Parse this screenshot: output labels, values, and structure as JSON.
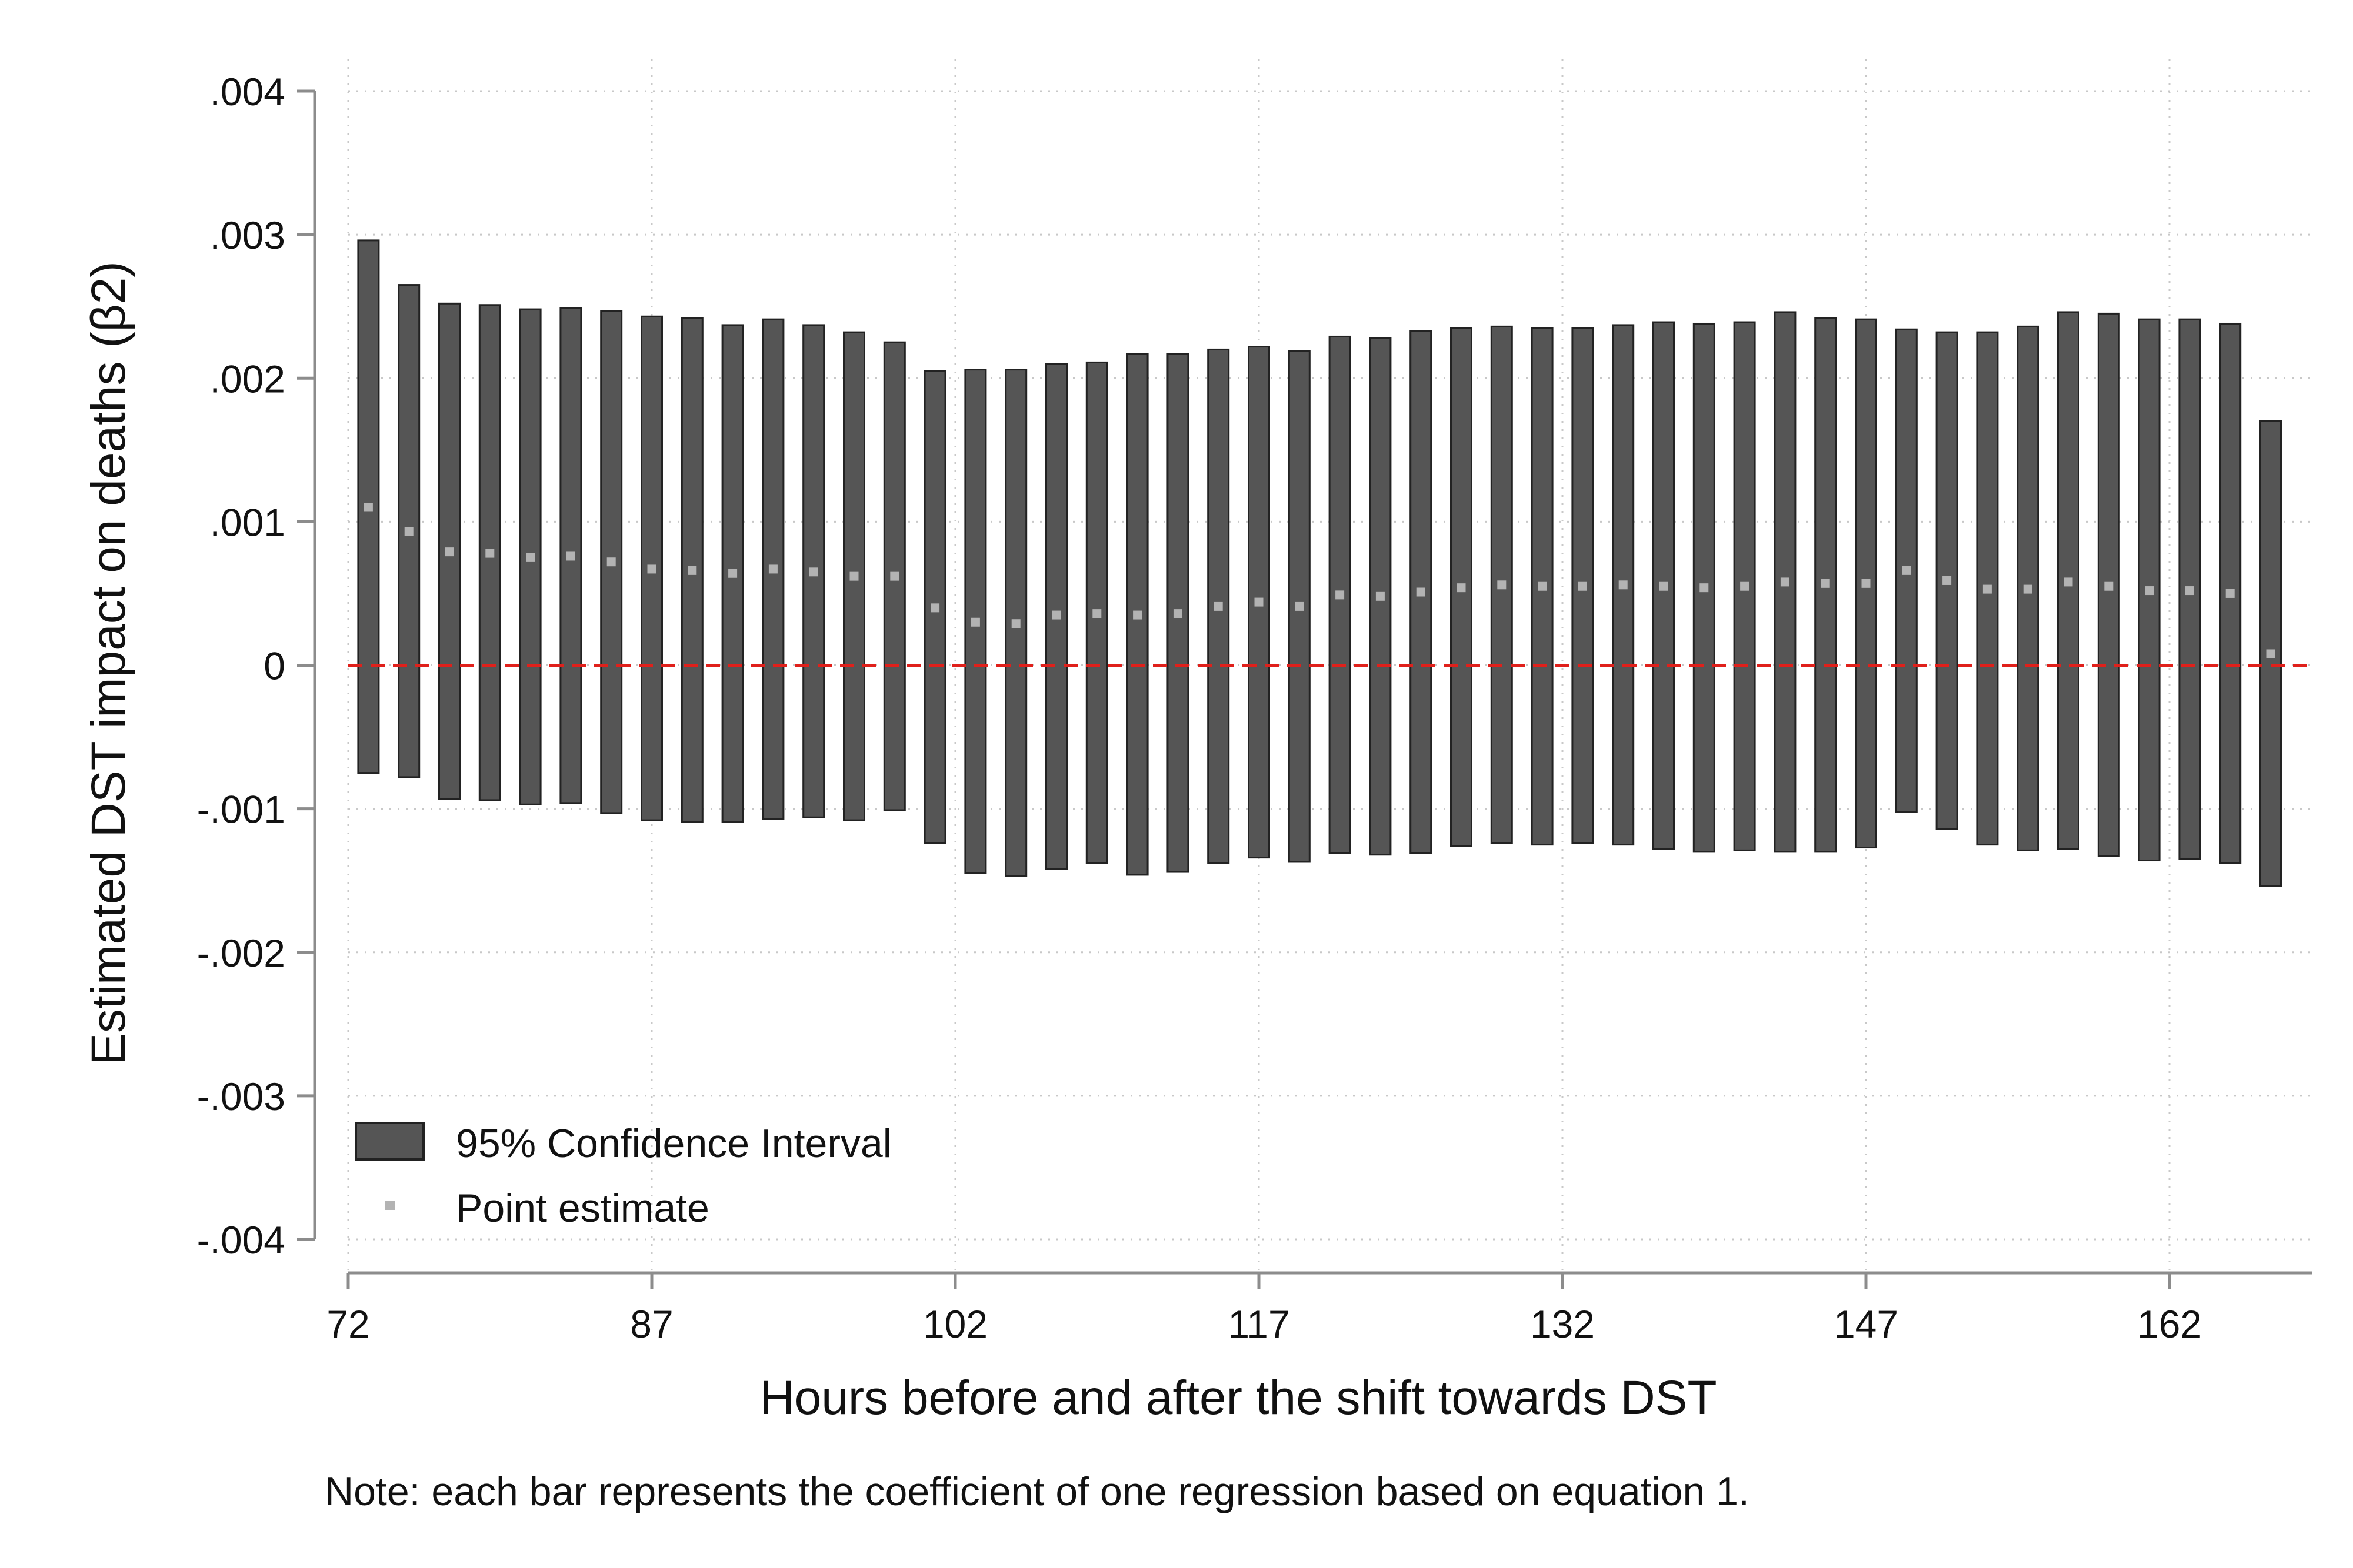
{
  "chart_data": {
    "type": "bar",
    "subtype": "range-bar-with-point-estimates",
    "xlabel": "Hours before and after the shift towards DST",
    "ylabel": "Estimated DST impact on deaths (β2)",
    "note": "Note: each bar represents the coefficient of one regression based on equation 1.",
    "xlim": [
      72,
      166
    ],
    "ylim": [
      -0.004,
      0.004
    ],
    "x_ticks": [
      72,
      87,
      102,
      117,
      132,
      147,
      162
    ],
    "x_tick_labels": [
      "72",
      "87",
      "102",
      "117",
      "132",
      "147",
      "162"
    ],
    "y_ticks": [
      0.004,
      0.003,
      0.002,
      0.001,
      0,
      -0.001,
      -0.002,
      -0.003,
      -0.004
    ],
    "y_tick_labels": [
      ".004",
      ".003",
      ".002",
      ".001",
      "0",
      "-.001",
      "-.002",
      "-.003",
      "-.004"
    ],
    "reference_line": {
      "y": 0,
      "color": "#e0201b",
      "style": "dashed"
    },
    "grid": true,
    "legend": {
      "placement": "bottom-left"
    },
    "series": [
      {
        "name": "95% Confidence Interval",
        "kind": "range",
        "color": "#555555",
        "x": [
          73,
          75,
          77,
          79,
          81,
          83,
          85,
          87,
          89,
          91,
          93,
          95,
          97,
          99,
          101,
          103,
          105,
          107,
          109,
          111,
          113,
          115,
          117,
          119,
          121,
          123,
          125,
          127,
          129,
          131,
          133,
          135,
          137,
          139,
          141,
          143,
          145,
          147,
          149,
          151,
          153,
          155,
          157,
          159,
          161,
          163,
          165,
          167
        ],
        "low": [
          -0.00075,
          -0.00078,
          -0.00093,
          -0.00094,
          -0.00097,
          -0.00096,
          -0.00103,
          -0.00108,
          -0.00109,
          -0.00109,
          -0.00107,
          -0.00106,
          -0.00108,
          -0.00101,
          -0.00124,
          -0.00145,
          -0.00147,
          -0.00142,
          -0.00138,
          -0.00146,
          -0.00144,
          -0.00138,
          -0.00134,
          -0.00137,
          -0.00131,
          -0.00132,
          -0.00131,
          -0.00126,
          -0.00124,
          -0.00125,
          -0.00124,
          -0.00125,
          -0.00128,
          -0.0013,
          -0.00129,
          -0.0013,
          -0.0013,
          -0.00127,
          -0.00102,
          -0.00114,
          -0.00125,
          -0.00129,
          -0.00128,
          -0.00133,
          -0.00136,
          -0.00135,
          -0.00138,
          -0.00154
        ],
        "high": [
          0.00296,
          0.00265,
          0.00252,
          0.00251,
          0.00248,
          0.00249,
          0.00247,
          0.00243,
          0.00242,
          0.00237,
          0.00241,
          0.00237,
          0.00232,
          0.00225,
          0.00205,
          0.00206,
          0.00206,
          0.0021,
          0.00211,
          0.00217,
          0.00217,
          0.0022,
          0.00222,
          0.00219,
          0.00229,
          0.00228,
          0.00233,
          0.00235,
          0.00236,
          0.00235,
          0.00235,
          0.00237,
          0.00239,
          0.00238,
          0.00239,
          0.00246,
          0.00242,
          0.00241,
          0.00234,
          0.00232,
          0.00232,
          0.00236,
          0.00246,
          0.00245,
          0.00241,
          0.00241,
          0.00238,
          0.0017
        ]
      },
      {
        "name": "Point estimate",
        "kind": "point",
        "color": "#b3b3b3",
        "x": [
          73,
          75,
          77,
          79,
          81,
          83,
          85,
          87,
          89,
          91,
          93,
          95,
          97,
          99,
          101,
          103,
          105,
          107,
          109,
          111,
          113,
          115,
          117,
          119,
          121,
          123,
          125,
          127,
          129,
          131,
          133,
          135,
          137,
          139,
          141,
          143,
          145,
          147,
          149,
          151,
          153,
          155,
          157,
          159,
          161,
          163,
          165,
          167
        ],
        "values": [
          0.0011,
          0.00093,
          0.00079,
          0.00078,
          0.00075,
          0.00076,
          0.00072,
          0.00067,
          0.00066,
          0.00064,
          0.00067,
          0.00065,
          0.00062,
          0.00062,
          0.0004,
          0.0003,
          0.00029,
          0.00035,
          0.00036,
          0.00035,
          0.00036,
          0.00041,
          0.00044,
          0.00041,
          0.00049,
          0.00048,
          0.00051,
          0.00054,
          0.00056,
          0.00055,
          0.00055,
          0.00056,
          0.00055,
          0.00054,
          0.00055,
          0.00058,
          0.00057,
          0.00057,
          0.00066,
          0.00059,
          0.00053,
          0.00053,
          0.00058,
          0.00055,
          0.00052,
          0.00052,
          0.0005,
          8e-05
        ]
      }
    ]
  }
}
